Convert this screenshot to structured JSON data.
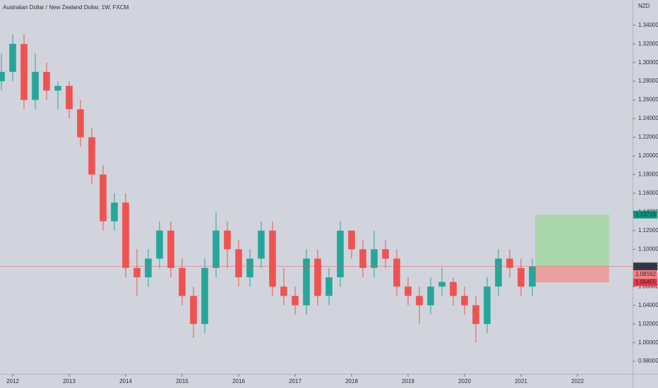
{
  "chart_data": {
    "type": "candlestick",
    "title": "Australian Dollar / New Zealand Dollar, 1W, FXCM",
    "currency": "NZD",
    "up_color": "#26a69a",
    "down_color": "#ef5350",
    "xlim": [
      2011.775,
      2022.975
    ],
    "ylim": [
      0.9665,
      1.367
    ],
    "xticks": [
      2012,
      2013,
      2014,
      2015,
      2016,
      2017,
      2018,
      2019,
      2020,
      2021,
      2022
    ],
    "yticks": [
      {
        "value": 0.98,
        "label": "0.98000"
      },
      {
        "value": 1.0,
        "label": "1.00000"
      },
      {
        "value": 1.02,
        "label": "1.02000"
      },
      {
        "value": 1.04,
        "label": "1.04000"
      },
      {
        "value": 1.06,
        "label": "1.06000"
      },
      {
        "value": 1.08,
        "label": "1.08000"
      },
      {
        "value": 1.1,
        "label": "1.10000"
      },
      {
        "value": 1.12,
        "label": "1.12000"
      },
      {
        "value": 1.14,
        "label": "1.14000"
      },
      {
        "value": 1.16,
        "label": "1.16000"
      },
      {
        "value": 1.18,
        "label": "1.18000"
      },
      {
        "value": 1.2,
        "label": "1.20000"
      },
      {
        "value": 1.22,
        "label": "1.22000"
      },
      {
        "value": 1.24,
        "label": "1.24000"
      },
      {
        "value": 1.26,
        "label": "1.26000"
      },
      {
        "value": 1.28,
        "label": "1.28000"
      },
      {
        "value": 1.3,
        "label": "1.30000"
      },
      {
        "value": 1.32,
        "label": "1.32000"
      },
      {
        "value": 1.34,
        "label": "1.34000"
      }
    ],
    "series": {
      "x": [
        2011.8,
        2012.0,
        2012.2,
        2012.4,
        2012.6,
        2012.8,
        2013.0,
        2013.2,
        2013.4,
        2013.6,
        2013.8,
        2014.0,
        2014.2,
        2014.4,
        2014.6,
        2014.8,
        2015.0,
        2015.2,
        2015.4,
        2015.6,
        2015.8,
        2016.0,
        2016.2,
        2016.4,
        2016.6,
        2016.8,
        2017.0,
        2017.2,
        2017.4,
        2017.6,
        2017.8,
        2018.0,
        2018.2,
        2018.4,
        2018.6,
        2018.8,
        2019.0,
        2019.2,
        2019.4,
        2019.6,
        2019.8,
        2020.0,
        2020.2,
        2020.4,
        2020.6,
        2020.8,
        2021.0,
        2021.2
      ],
      "open": [
        1.28,
        1.29,
        1.32,
        1.26,
        1.29,
        1.27,
        1.275,
        1.25,
        1.22,
        1.18,
        1.13,
        1.15,
        1.08,
        1.07,
        1.09,
        1.12,
        1.08,
        1.05,
        1.02,
        1.08,
        1.12,
        1.1,
        1.07,
        1.09,
        1.12,
        1.06,
        1.05,
        1.04,
        1.09,
        1.05,
        1.07,
        1.12,
        1.1,
        1.08,
        1.1,
        1.09,
        1.06,
        1.05,
        1.04,
        1.06,
        1.065,
        1.05,
        1.04,
        1.02,
        1.06,
        1.09,
        1.08,
        1.06
      ],
      "high": [
        1.31,
        1.33,
        1.33,
        1.31,
        1.3,
        1.28,
        1.28,
        1.26,
        1.23,
        1.19,
        1.16,
        1.16,
        1.1,
        1.1,
        1.13,
        1.13,
        1.09,
        1.06,
        1.09,
        1.14,
        1.13,
        1.11,
        1.1,
        1.13,
        1.13,
        1.08,
        1.06,
        1.1,
        1.1,
        1.08,
        1.13,
        1.12,
        1.11,
        1.12,
        1.11,
        1.1,
        1.07,
        1.06,
        1.07,
        1.08,
        1.07,
        1.06,
        1.05,
        1.07,
        1.1,
        1.1,
        1.09,
        1.09
      ],
      "low": [
        1.27,
        1.28,
        1.25,
        1.25,
        1.26,
        1.25,
        1.24,
        1.21,
        1.17,
        1.12,
        1.12,
        1.07,
        1.05,
        1.06,
        1.08,
        1.07,
        1.04,
        1.005,
        1.01,
        1.07,
        1.08,
        1.06,
        1.06,
        1.08,
        1.05,
        1.04,
        1.03,
        1.03,
        1.04,
        1.04,
        1.06,
        1.09,
        1.07,
        1.07,
        1.08,
        1.05,
        1.04,
        1.02,
        1.03,
        1.05,
        1.04,
        1.03,
        1.0,
        1.01,
        1.05,
        1.07,
        1.05,
        1.05
      ],
      "close": [
        1.29,
        1.32,
        1.26,
        1.29,
        1.27,
        1.275,
        1.25,
        1.22,
        1.18,
        1.13,
        1.15,
        1.08,
        1.07,
        1.09,
        1.12,
        1.08,
        1.05,
        1.02,
        1.08,
        1.12,
        1.1,
        1.07,
        1.09,
        1.12,
        1.06,
        1.05,
        1.04,
        1.09,
        1.05,
        1.07,
        1.12,
        1.1,
        1.08,
        1.1,
        1.09,
        1.06,
        1.05,
        1.04,
        1.06,
        1.065,
        1.05,
        1.04,
        1.02,
        1.06,
        1.09,
        1.08,
        1.06,
        1.08162
      ]
    },
    "position": {
      "start": 2021.25,
      "end": 2022.56,
      "entry": 1.08162,
      "target": 1.13715,
      "stop": 1.06455,
      "profit_color": "#a5d6a7",
      "loss_color": "#ef9a9a",
      "target_label_color": "#089981",
      "stop_label_color": "#f23645",
      "entry_label_color": "#f77c80"
    }
  }
}
